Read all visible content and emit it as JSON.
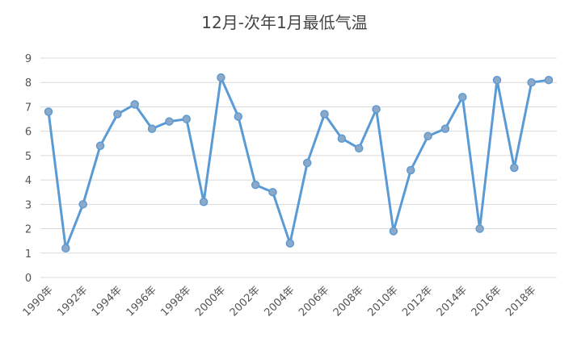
{
  "chart_data": {
    "type": "line",
    "title": "12月-次年1月最低气温",
    "xlabel": "",
    "ylabel": "",
    "ylim": [
      0,
      9
    ],
    "yticks": [
      0,
      1,
      2,
      3,
      4,
      5,
      6,
      7,
      8,
      9
    ],
    "grid": true,
    "legend": "none",
    "x": [
      "1990年",
      "1991年",
      "1992年",
      "1993年",
      "1994年",
      "1995年",
      "1996年",
      "1997年",
      "1998年",
      "1999年",
      "2000年",
      "2001年",
      "2002年",
      "2003年",
      "2004年",
      "2005年",
      "2006年",
      "2007年",
      "2008年",
      "2009年",
      "2010年",
      "2011年",
      "2012年",
      "2013年",
      "2014年",
      "2015年",
      "2016年",
      "2017年",
      "2018年",
      "2019年"
    ],
    "xtick_labels": [
      "1990年",
      "1992年",
      "1994年",
      "1996年",
      "1998年",
      "2000年",
      "2002年",
      "2004年",
      "2006年",
      "2008年",
      "2010年",
      "2012年",
      "2014年",
      "2016年",
      "2018年"
    ],
    "series": [
      {
        "values": [
          6.8,
          1.2,
          3.0,
          5.4,
          6.7,
          7.1,
          6.1,
          6.4,
          6.5,
          3.1,
          8.2,
          6.6,
          3.8,
          3.5,
          1.4,
          4.7,
          6.7,
          5.7,
          5.3,
          6.9,
          1.9,
          4.4,
          5.8,
          6.1,
          7.4,
          2.0,
          8.1,
          4.5,
          8.0,
          8.1
        ],
        "color": "#5b9bd5",
        "marker_color": "#8ea9c8"
      }
    ]
  }
}
